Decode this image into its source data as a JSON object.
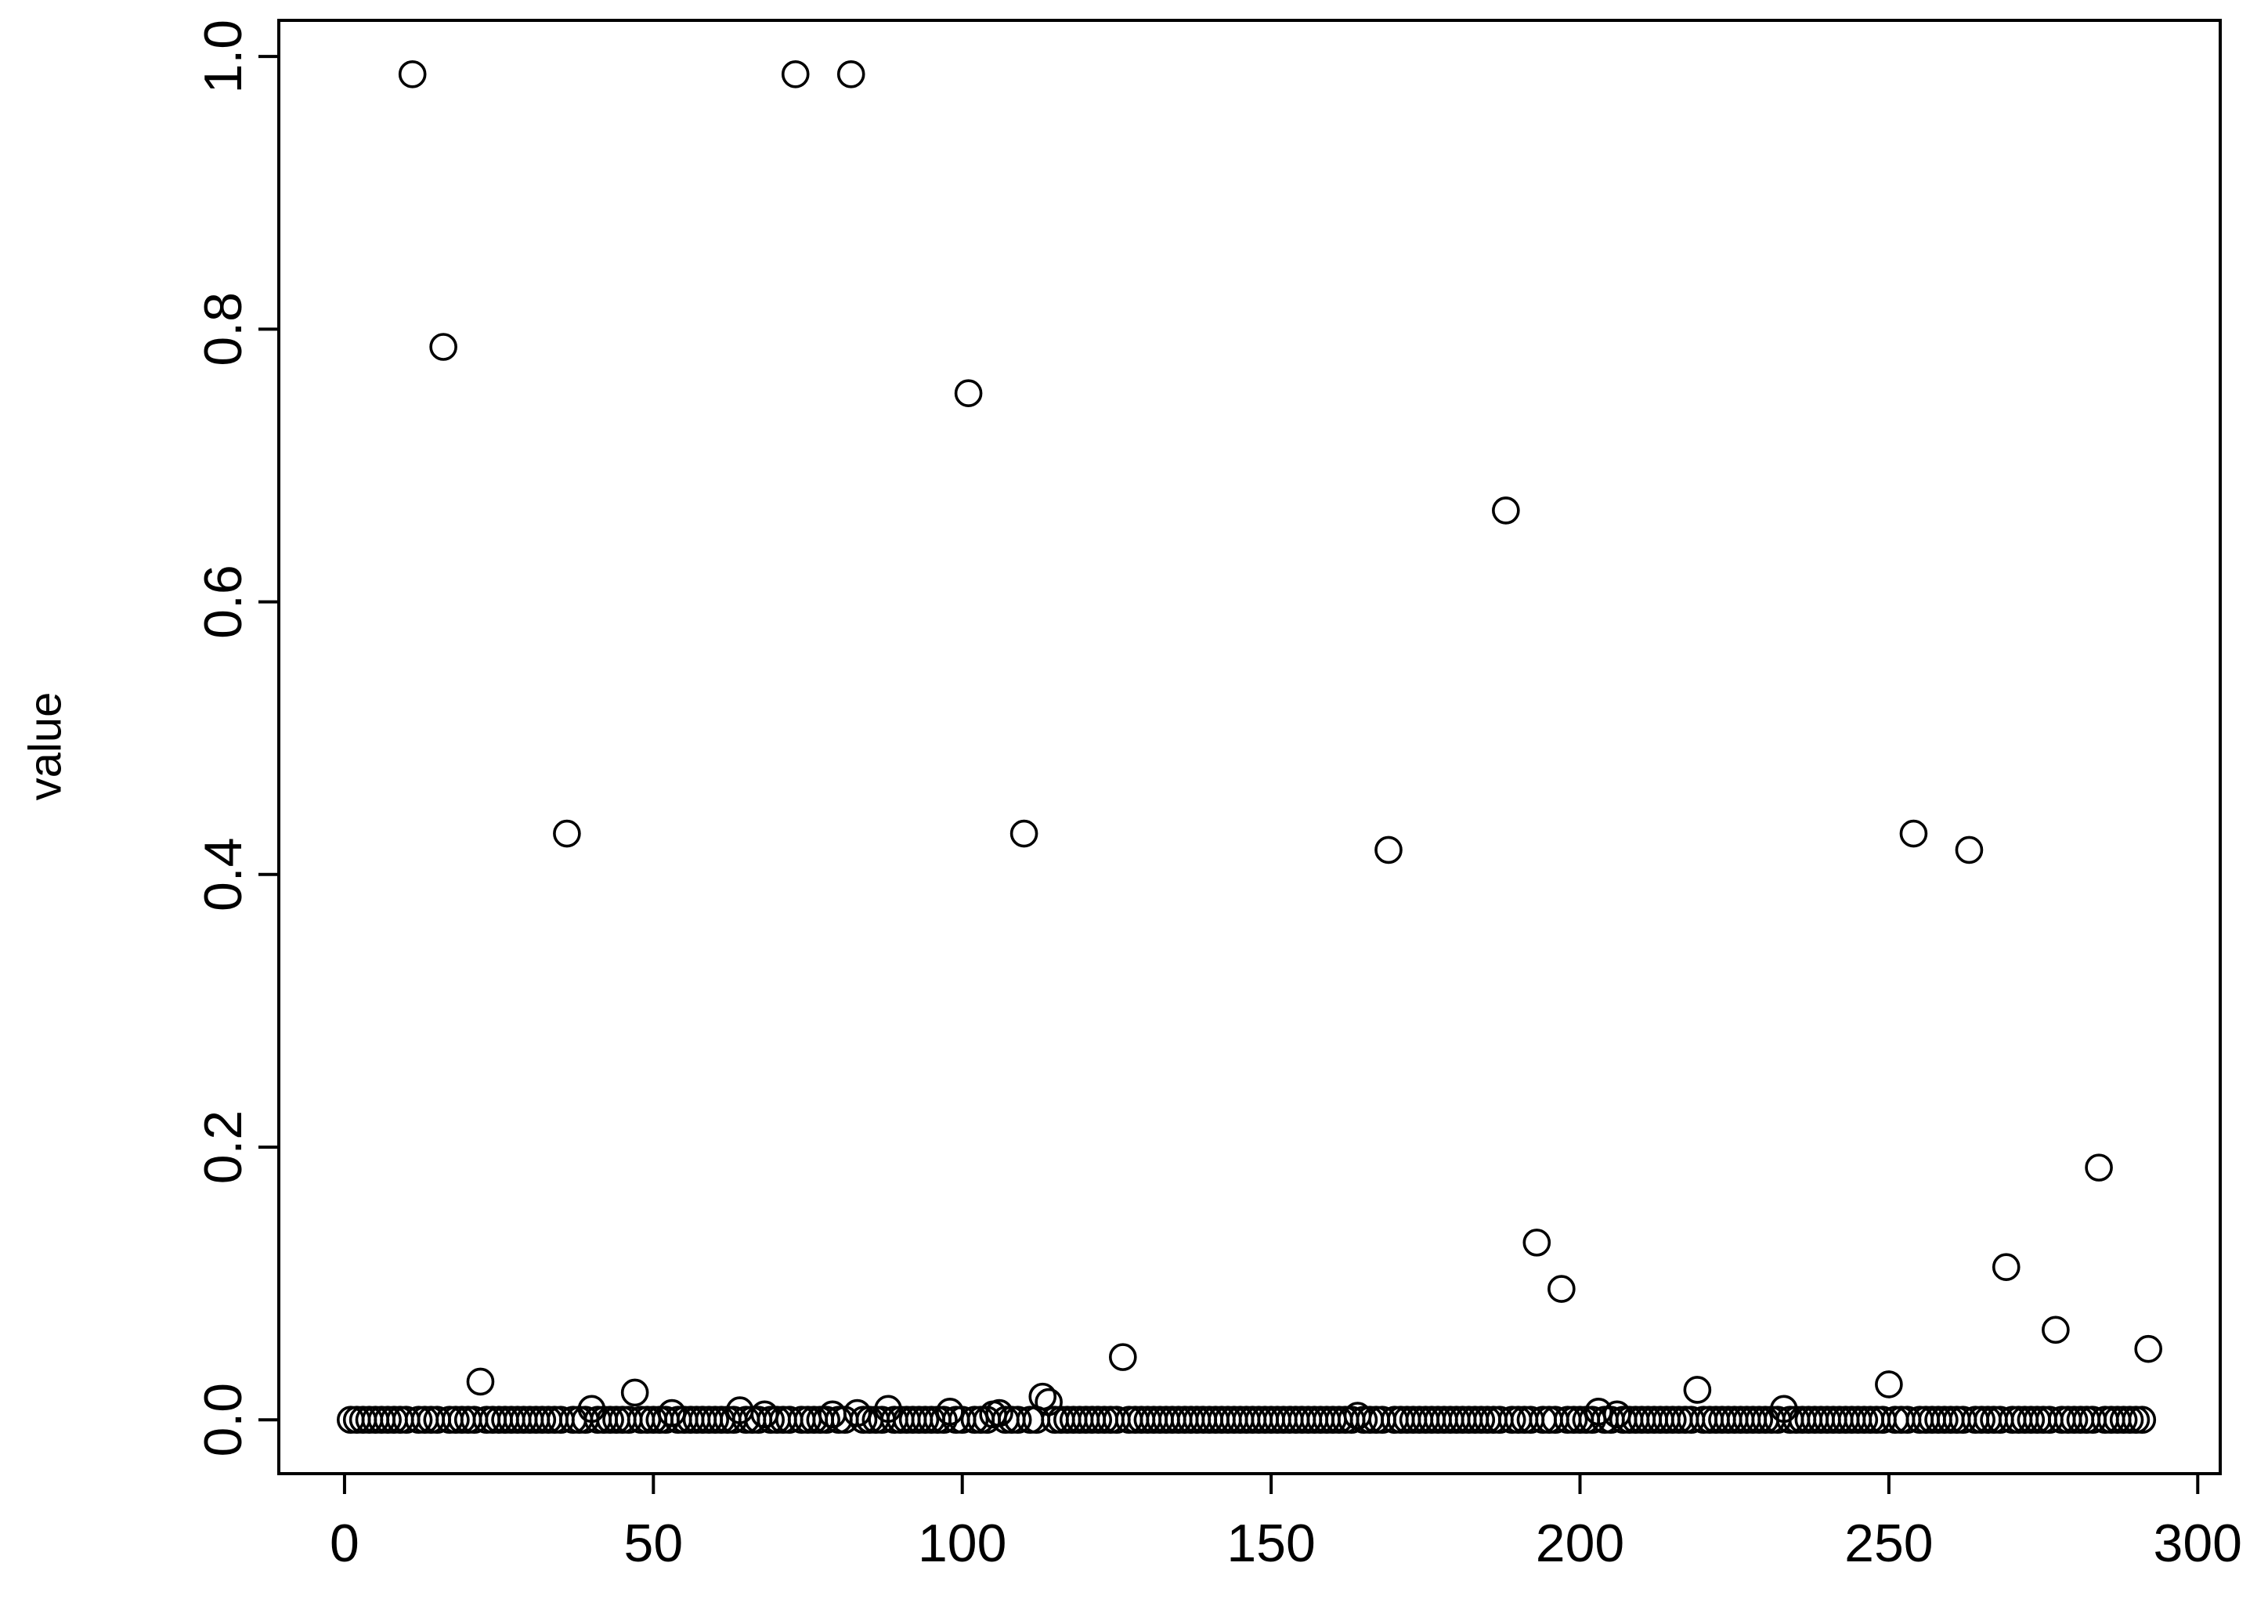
{
  "chart_data": {
    "type": "scatter",
    "y_label": "value",
    "color": "#000000",
    "x": [
      1,
      2,
      3,
      4,
      5,
      6,
      7,
      8,
      9,
      10,
      11,
      12,
      13,
      14,
      15,
      16,
      17,
      18,
      19,
      20,
      21,
      22,
      23,
      24,
      25,
      26,
      27,
      28,
      29,
      30,
      31,
      32,
      33,
      34,
      35,
      36,
      37,
      38,
      39,
      40,
      41,
      42,
      43,
      44,
      45,
      46,
      47,
      48,
      49,
      50,
      51,
      52,
      53,
      54,
      55,
      56,
      57,
      58,
      59,
      60,
      61,
      62,
      63,
      64,
      65,
      66,
      67,
      68,
      69,
      70,
      71,
      72,
      73,
      74,
      75,
      76,
      77,
      78,
      79,
      80,
      81,
      82,
      83,
      84,
      85,
      86,
      87,
      88,
      89,
      90,
      91,
      92,
      93,
      94,
      95,
      96,
      97,
      98,
      99,
      100,
      101,
      102,
      103,
      104,
      105,
      106,
      107,
      108,
      109,
      110,
      111,
      112,
      113,
      114,
      115,
      116,
      117,
      118,
      119,
      120,
      121,
      122,
      123,
      124,
      125,
      126,
      127,
      128,
      129,
      130,
      131,
      132,
      133,
      134,
      135,
      136,
      137,
      138,
      139,
      140,
      141,
      142,
      143,
      144,
      145,
      146,
      147,
      148,
      149,
      150,
      151,
      152,
      153,
      154,
      155,
      156,
      157,
      158,
      159,
      160,
      161,
      162,
      163,
      164,
      165,
      166,
      167,
      168,
      169,
      170,
      171,
      172,
      173,
      174,
      175,
      176,
      177,
      178,
      179,
      180,
      181,
      182,
      183,
      184,
      185,
      186,
      187,
      188,
      189,
      190,
      191,
      192,
      193,
      194,
      195,
      196,
      197,
      198,
      199,
      200,
      201,
      202,
      203,
      204,
      205,
      206,
      207,
      208,
      209,
      210,
      211,
      212,
      213,
      214,
      215,
      216,
      217,
      218,
      219,
      220,
      221,
      222,
      223,
      224,
      225,
      226,
      227,
      228,
      229,
      230,
      231,
      232,
      233,
      234,
      235,
      236,
      237,
      238,
      239,
      240,
      241,
      242,
      243,
      244,
      245,
      246,
      247,
      248,
      249,
      250,
      251,
      252,
      253,
      254,
      255,
      256,
      257,
      258,
      259,
      260,
      261,
      262,
      263,
      264,
      265,
      266,
      267,
      268,
      269,
      270,
      271,
      272,
      273,
      274,
      275,
      276,
      277,
      278,
      279,
      280,
      281,
      282,
      283,
      284,
      285,
      286,
      287,
      288,
      289,
      290,
      291,
      292
    ],
    "values": [
      0,
      0,
      0,
      0,
      0,
      0,
      0,
      0,
      0,
      0,
      0.987,
      0,
      0,
      0,
      0,
      0.787,
      0,
      0,
      0,
      0,
      0,
      0.028,
      0,
      0,
      0,
      0,
      0,
      0,
      0,
      0,
      0,
      0,
      0,
      0,
      0,
      0.43,
      0,
      0,
      0,
      0.008,
      0,
      0,
      0,
      0,
      0,
      0,
      0.02,
      0,
      0,
      0,
      0,
      0,
      0.005,
      0,
      0,
      0,
      0,
      0,
      0,
      0,
      0,
      0,
      0,
      0.007,
      0,
      0,
      0,
      0.004,
      0,
      0,
      0,
      0,
      0.987,
      0,
      0,
      0,
      0,
      0,
      0.004,
      0,
      0,
      0.987,
      0.005,
      0,
      0,
      0,
      0,
      0.008,
      0,
      0,
      0,
      0,
      0,
      0,
      0,
      0,
      0,
      0.006,
      0,
      0,
      0.753,
      0,
      0,
      0,
      0.004,
      0.005,
      0,
      0,
      0,
      0.43,
      0,
      0,
      0.017,
      0.013,
      0,
      0,
      0,
      0,
      0,
      0,
      0,
      0,
      0,
      0,
      0,
      0.046,
      0,
      0,
      0,
      0,
      0,
      0,
      0,
      0,
      0,
      0,
      0,
      0,
      0,
      0,
      0,
      0,
      0,
      0,
      0,
      0,
      0,
      0,
      0,
      0,
      0,
      0,
      0,
      0,
      0,
      0,
      0,
      0,
      0,
      0,
      0,
      0,
      0,
      0.003,
      0,
      0,
      0,
      0,
      0.418,
      0,
      0,
      0,
      0,
      0,
      0,
      0,
      0,
      0,
      0,
      0,
      0,
      0,
      0,
      0,
      0,
      0,
      0,
      0.667,
      0,
      0,
      0,
      0,
      0.13,
      0,
      0,
      0,
      0.096,
      0,
      0,
      0,
      0,
      0,
      0.006,
      0,
      0,
      0.004,
      0,
      0,
      0,
      0,
      0,
      0,
      0,
      0,
      0,
      0,
      0,
      0,
      0.022,
      0,
      0,
      0,
      0,
      0,
      0,
      0,
      0,
      0,
      0,
      0,
      0,
      0,
      0.008,
      0,
      0,
      0,
      0,
      0,
      0,
      0,
      0,
      0,
      0,
      0,
      0,
      0,
      0,
      0,
      0,
      0.026,
      0,
      0,
      0,
      0.43,
      0,
      0,
      0,
      0,
      0,
      0,
      0,
      0,
      0.418,
      0,
      0,
      0,
      0,
      0,
      0.112,
      0,
      0,
      0,
      0,
      0,
      0,
      0,
      0.066,
      0,
      0,
      0,
      0,
      0,
      0,
      0.185,
      0,
      0,
      0,
      0,
      0,
      0,
      0,
      0.052
    ],
    "xlim": [
      -10.64,
      303.64
    ],
    "ylim": [
      -0.0395,
      1.0265
    ],
    "xticks": [
      0,
      50,
      100,
      150,
      200,
      250,
      300
    ],
    "yticks": [
      {
        "value": 0,
        "label": "0.0"
      },
      {
        "value": 0.2,
        "label": "0.2"
      },
      {
        "value": 0.4,
        "label": "0.4"
      },
      {
        "value": 0.6,
        "label": "0.6"
      },
      {
        "value": 0.8,
        "label": "0.8"
      },
      {
        "value": 1,
        "label": "1.0"
      }
    ]
  }
}
